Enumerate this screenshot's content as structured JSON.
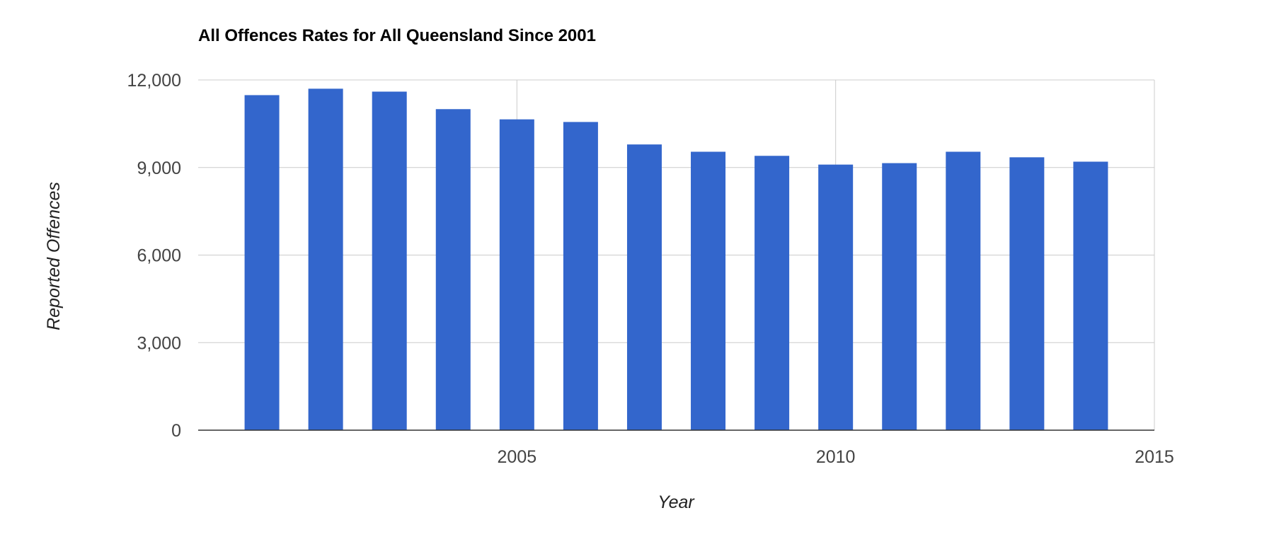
{
  "chart_data": {
    "type": "bar",
    "title": "All Offences Rates for All Queensland Since 2001",
    "xlabel": "Year",
    "ylabel": "Reported Offences",
    "x": [
      2001,
      2002,
      2003,
      2004,
      2005,
      2006,
      2007,
      2008,
      2009,
      2010,
      2011,
      2012,
      2013,
      2014
    ],
    "values": [
      11480,
      11700,
      11600,
      11000,
      10650,
      10560,
      9790,
      9540,
      9400,
      9100,
      9150,
      9540,
      9350,
      9200
    ],
    "xlim": [
      2000,
      2015
    ],
    "ylim": [
      0,
      12000
    ],
    "x_ticks": [
      "2005",
      "2010",
      "2015"
    ],
    "y_ticks": [
      "0",
      "3,000",
      "6,000",
      "9,000",
      "12,000"
    ],
    "bar_color": "#3366cc",
    "grid": true,
    "legend": "none"
  }
}
